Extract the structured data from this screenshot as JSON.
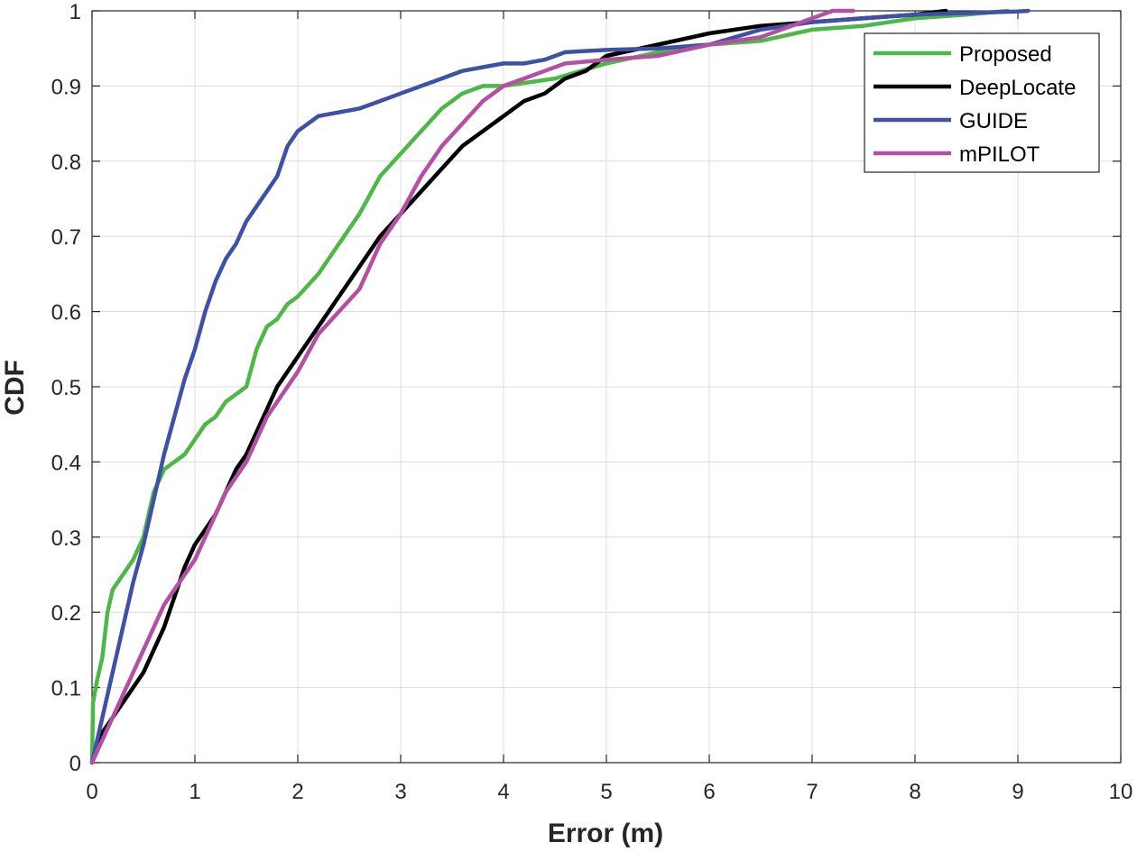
{
  "chart_data": {
    "type": "line",
    "title": "",
    "xlabel": "Error (m)",
    "ylabel": "CDF",
    "xlim": [
      0,
      10
    ],
    "ylim": [
      0,
      1
    ],
    "xticks": [
      0,
      1,
      2,
      3,
      4,
      5,
      6,
      7,
      8,
      9,
      10
    ],
    "xtick_labels": [
      "0",
      "1",
      "2",
      "3",
      "4",
      "5",
      "6",
      "7",
      "8",
      "9",
      "10"
    ],
    "yticks": [
      0,
      0.1,
      0.2,
      0.3,
      0.4,
      0.5,
      0.6,
      0.7,
      0.8,
      0.9,
      1
    ],
    "ytick_labels": [
      "0",
      "0.1",
      "0.2",
      "0.3",
      "0.4",
      "0.5",
      "0.6",
      "0.7",
      "0.8",
      "0.9",
      "1"
    ],
    "grid": true,
    "legend_position": "top-right",
    "series": [
      {
        "name": "Proposed",
        "color": "#4db848",
        "x": [
          0,
          0.01,
          0.05,
          0.1,
          0.15,
          0.2,
          0.25,
          0.3,
          0.4,
          0.5,
          0.6,
          0.7,
          0.8,
          0.9,
          1.0,
          1.1,
          1.2,
          1.3,
          1.4,
          1.5,
          1.6,
          1.7,
          1.8,
          1.9,
          2.0,
          2.2,
          2.4,
          2.6,
          2.8,
          3.0,
          3.2,
          3.4,
          3.6,
          3.8,
          4.0,
          4.5,
          5.0,
          5.5,
          6.0,
          6.5,
          7.0,
          7.5,
          8.0,
          8.5,
          8.9
        ],
        "y": [
          0,
          0.08,
          0.11,
          0.14,
          0.2,
          0.23,
          0.24,
          0.25,
          0.27,
          0.3,
          0.36,
          0.39,
          0.4,
          0.41,
          0.43,
          0.45,
          0.46,
          0.48,
          0.49,
          0.5,
          0.55,
          0.58,
          0.59,
          0.61,
          0.62,
          0.65,
          0.69,
          0.73,
          0.78,
          0.81,
          0.84,
          0.87,
          0.89,
          0.9,
          0.9,
          0.91,
          0.93,
          0.945,
          0.955,
          0.96,
          0.975,
          0.98,
          0.99,
          0.995,
          1.0
        ]
      },
      {
        "name": "DeepLocate",
        "color": "#000000",
        "x": [
          0,
          0.1,
          0.2,
          0.3,
          0.4,
          0.5,
          0.6,
          0.7,
          0.8,
          0.9,
          1.0,
          1.1,
          1.2,
          1.3,
          1.4,
          1.5,
          1.6,
          1.7,
          1.8,
          1.9,
          2.0,
          2.2,
          2.4,
          2.6,
          2.8,
          3.0,
          3.2,
          3.4,
          3.6,
          3.8,
          4.0,
          4.2,
          4.4,
          4.6,
          4.8,
          5.0,
          5.5,
          6.0,
          6.5,
          7.0,
          7.5,
          8.0,
          8.3
        ],
        "y": [
          0,
          0.04,
          0.06,
          0.08,
          0.1,
          0.12,
          0.15,
          0.18,
          0.22,
          0.26,
          0.29,
          0.31,
          0.33,
          0.36,
          0.39,
          0.41,
          0.44,
          0.47,
          0.5,
          0.52,
          0.54,
          0.58,
          0.62,
          0.66,
          0.7,
          0.73,
          0.76,
          0.79,
          0.82,
          0.84,
          0.86,
          0.88,
          0.89,
          0.91,
          0.92,
          0.94,
          0.955,
          0.97,
          0.98,
          0.985,
          0.99,
          0.995,
          1.0
        ]
      },
      {
        "name": "GUIDE",
        "color": "#3f51a5",
        "x": [
          0,
          0.1,
          0.2,
          0.3,
          0.4,
          0.5,
          0.6,
          0.7,
          0.8,
          0.9,
          1.0,
          1.1,
          1.2,
          1.3,
          1.4,
          1.5,
          1.6,
          1.7,
          1.8,
          1.9,
          2.0,
          2.2,
          2.4,
          2.6,
          2.8,
          3.0,
          3.2,
          3.4,
          3.6,
          3.8,
          4.0,
          4.2,
          4.4,
          4.6,
          5.0,
          5.5,
          6.0,
          6.5,
          7.0,
          7.5,
          8.0,
          8.5,
          9.0,
          9.1
        ],
        "y": [
          0,
          0.06,
          0.12,
          0.18,
          0.24,
          0.29,
          0.35,
          0.41,
          0.46,
          0.51,
          0.55,
          0.6,
          0.64,
          0.67,
          0.69,
          0.72,
          0.74,
          0.76,
          0.78,
          0.82,
          0.84,
          0.86,
          0.865,
          0.87,
          0.88,
          0.89,
          0.9,
          0.91,
          0.92,
          0.925,
          0.93,
          0.93,
          0.935,
          0.945,
          0.948,
          0.95,
          0.955,
          0.975,
          0.985,
          0.99,
          0.995,
          0.997,
          0.999,
          1.0
        ]
      },
      {
        "name": "mPILOT",
        "color": "#b44fa1",
        "x": [
          0,
          0.1,
          0.2,
          0.3,
          0.4,
          0.5,
          0.6,
          0.7,
          0.8,
          0.9,
          1.0,
          1.1,
          1.2,
          1.3,
          1.4,
          1.5,
          1.6,
          1.7,
          1.8,
          1.9,
          2.0,
          2.2,
          2.4,
          2.6,
          2.8,
          3.0,
          3.2,
          3.4,
          3.6,
          3.8,
          4.0,
          4.2,
          4.4,
          4.6,
          5.0,
          5.5,
          6.0,
          6.5,
          7.0,
          7.2,
          7.4
        ],
        "y": [
          0,
          0.03,
          0.06,
          0.09,
          0.12,
          0.15,
          0.18,
          0.21,
          0.23,
          0.25,
          0.27,
          0.3,
          0.33,
          0.36,
          0.38,
          0.4,
          0.43,
          0.46,
          0.48,
          0.5,
          0.52,
          0.57,
          0.6,
          0.63,
          0.69,
          0.73,
          0.78,
          0.82,
          0.85,
          0.88,
          0.9,
          0.91,
          0.92,
          0.93,
          0.935,
          0.94,
          0.955,
          0.965,
          0.99,
          1.0,
          1.0
        ]
      }
    ]
  }
}
